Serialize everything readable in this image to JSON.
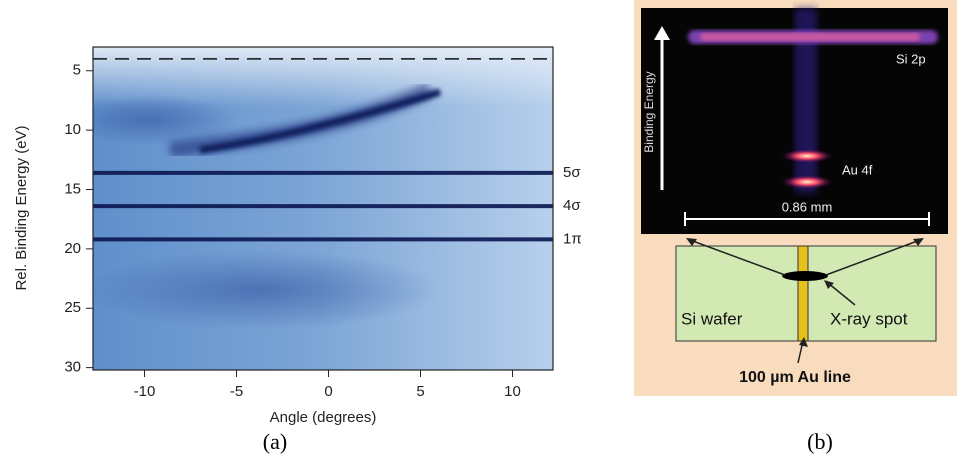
{
  "panel_a": {
    "caption": "(a)",
    "y_label": "Rel. Binding Energy (eV)",
    "x_label": "Angle (degrees)",
    "xlim": [
      -12.8,
      12.2
    ],
    "ylim": [
      30.2,
      3
    ],
    "xticks": [
      -10,
      -5,
      0,
      5,
      10
    ],
    "yticks": [
      5,
      10,
      15,
      20,
      25,
      30
    ],
    "fermi_level": 4,
    "bands": [
      {
        "label": "5σ",
        "energy": 13.6
      },
      {
        "label": "4σ",
        "energy": 16.4
      },
      {
        "label": "1π",
        "energy": 19.2
      }
    ]
  },
  "panel_b": {
    "caption": "(b)",
    "axis_label": "Binding Energy",
    "peak_labels": [
      "Si 2p",
      "Au 4f"
    ],
    "scale_label": "0.86 mm",
    "labels": {
      "wafer": "Si wafer",
      "spot": "X-ray spot",
      "line": "100 µm Au line"
    }
  }
}
